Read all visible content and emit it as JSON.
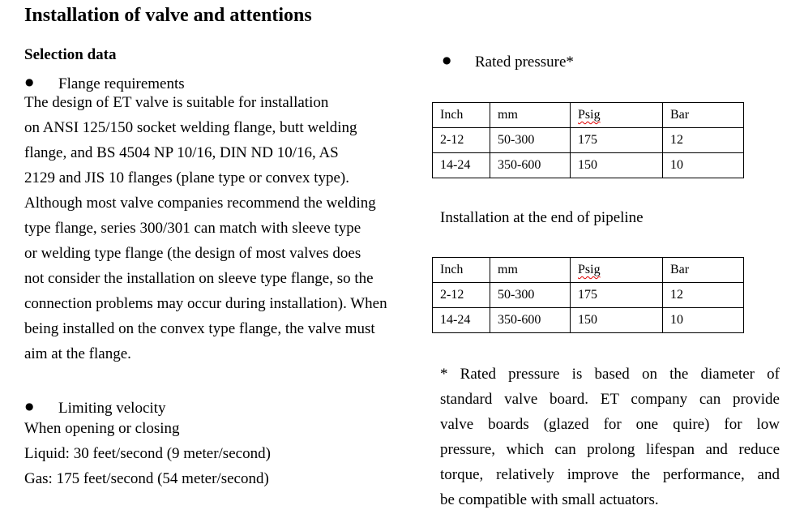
{
  "page": {
    "title": "Installation of valve and attentions"
  },
  "icons": {
    "bullet": "●"
  },
  "colors": {
    "text": "#000000",
    "table_border": "#000000",
    "spellcheck_underline": "#e00000"
  },
  "left": {
    "section_heading": "Selection data",
    "flange": {
      "label": "Flange requirements",
      "body": "The design of ET valve is suitable for installation\non ANSI 125/150 socket welding flange, butt welding\nflange, and BS 4504 NP 10/16, DIN ND 10/16, AS\n2129 and JIS 10 flanges (plane type or convex type).\nAlthough most valve companies recommend the welding\ntype flange, series 300/301 can match with sleeve type\nor welding type flange (the design of most valves does\nnot consider the installation on sleeve type flange, so the\nconnection problems may occur during installation). When\nbeing installed on the convex type flange, the valve must\naim at the flange."
    },
    "velocity": {
      "label": "Limiting velocity",
      "body": "When opening or closing\nLiquid: 30 feet/second (9 meter/second)\nGas: 175 feet/second (54 meter/second)"
    }
  },
  "right": {
    "rated_label": "Rated pressure*",
    "pipeline_heading": "Installation at the end of pipeline",
    "table_headers": [
      "Inch",
      "mm",
      "Psig",
      "Bar"
    ],
    "table_rows": [
      [
        "2-12",
        "50-300",
        "175",
        "12"
      ],
      [
        "14-24",
        "350-600",
        "150",
        "10"
      ]
    ],
    "footnote_lines": [
      "* Rated pressure is based on the diameter of",
      "standard valve board. ET company can provide",
      "valve boards (glazed for one quire) for low",
      "pressure, which can prolong lifespan and reduce",
      "torque, relatively improve the performance, and",
      "be compatible with small actuators."
    ]
  }
}
